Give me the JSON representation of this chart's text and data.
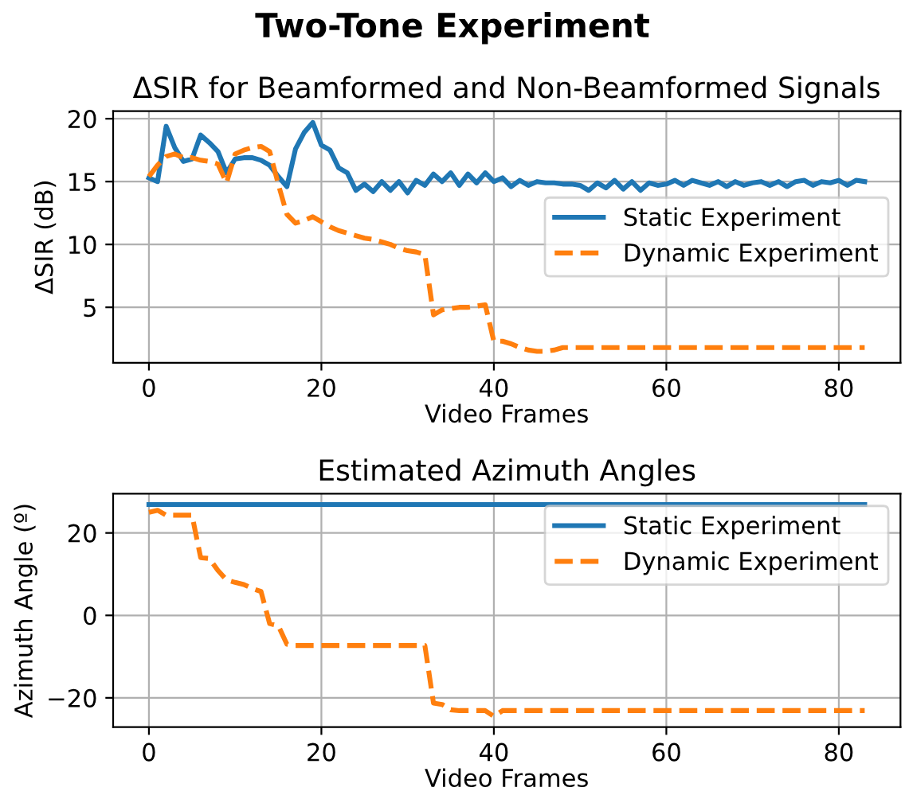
{
  "chart_data": [
    {
      "type": "line",
      "annotations": [
        "Two-Tone Experiment"
      ],
      "title": "ΔSIR for Beamformed and Non-Beamformed Signals",
      "xlabel": "Video Frames",
      "ylabel": "ΔSIR (dB)",
      "x": [
        0,
        1,
        2,
        3,
        4,
        5,
        6,
        7,
        8,
        9,
        10,
        11,
        12,
        13,
        14,
        15,
        16,
        17,
        18,
        19,
        20,
        21,
        22,
        23,
        24,
        25,
        26,
        27,
        28,
        29,
        30,
        31,
        32,
        33,
        34,
        35,
        36,
        37,
        38,
        39,
        40,
        41,
        42,
        43,
        44,
        45,
        46,
        47,
        48,
        49,
        50,
        51,
        52,
        53,
        54,
        55,
        56,
        57,
        58,
        59,
        60,
        61,
        62,
        63,
        64,
        65,
        66,
        67,
        68,
        69,
        70,
        71,
        72,
        73,
        74,
        75,
        76,
        77,
        78,
        79,
        80,
        81,
        82,
        83
      ],
      "series": [
        {
          "name": "Static Experiment",
          "color": "#1f77b4",
          "line_style": "solid",
          "values": [
            15.3,
            15.0,
            19.4,
            17.7,
            16.6,
            16.8,
            18.7,
            18.1,
            17.4,
            15.7,
            16.8,
            16.9,
            16.9,
            16.7,
            16.3,
            15.4,
            14.6,
            17.6,
            18.9,
            19.7,
            17.9,
            17.5,
            16.1,
            15.7,
            14.3,
            14.8,
            14.2,
            15.0,
            14.3,
            15.0,
            14.1,
            15.1,
            14.7,
            15.6,
            15.0,
            15.7,
            14.7,
            15.6,
            14.9,
            15.7,
            15.0,
            15.3,
            14.6,
            15.1,
            14.7,
            15.0,
            14.9,
            14.9,
            14.8,
            14.8,
            14.7,
            14.3,
            14.9,
            14.5,
            15.1,
            14.4,
            15.0,
            14.3,
            14.9,
            14.7,
            14.8,
            15.1,
            14.7,
            15.1,
            14.9,
            14.7,
            15.0,
            14.6,
            15.0,
            14.7,
            14.9,
            15.0,
            14.7,
            15.0,
            14.6,
            15.0,
            15.1,
            14.7,
            15.0,
            14.9,
            15.1,
            14.7,
            15.1,
            15.0
          ]
        },
        {
          "name": "Dynamic Experiment",
          "color": "#ff7f0e",
          "line_style": "dashed",
          "values": [
            15.4,
            16.3,
            17.0,
            17.2,
            16.9,
            16.9,
            16.7,
            16.6,
            16.4,
            14.9,
            17.2,
            17.5,
            17.7,
            17.8,
            17.4,
            14.8,
            12.4,
            11.7,
            11.9,
            12.2,
            11.8,
            11.4,
            11.1,
            10.9,
            10.7,
            10.5,
            10.4,
            10.2,
            10.0,
            9.7,
            9.5,
            9.4,
            9.2,
            4.4,
            4.8,
            4.9,
            5.0,
            5.0,
            5.1,
            5.2,
            2.3,
            2.3,
            2.1,
            1.8,
            1.6,
            1.5,
            1.5,
            1.6,
            1.8,
            1.8,
            1.8,
            1.8,
            1.8,
            1.8,
            1.8,
            1.8,
            1.8,
            1.8,
            1.8,
            1.8,
            1.8,
            1.8,
            1.8,
            1.8,
            1.8,
            1.8,
            1.8,
            1.8,
            1.8,
            1.8,
            1.8,
            1.8,
            1.8,
            1.8,
            1.8,
            1.8,
            1.8,
            1.8,
            1.8,
            1.8,
            1.8,
            1.8,
            1.8,
            1.8
          ]
        }
      ],
      "xlim": [
        -4.15,
        87.15
      ],
      "ylim": [
        0.59,
        20.61
      ],
      "xticks": [
        0,
        20,
        40,
        60,
        80
      ],
      "yticks": [
        5,
        10,
        15,
        20
      ],
      "grid": true,
      "legend": "right",
      "marker": "none"
    },
    {
      "type": "line",
      "title": "Estimated Azimuth Angles",
      "xlabel": "Video Frames",
      "ylabel": "Azimuth Angle (º)",
      "x": [
        0,
        1,
        2,
        3,
        4,
        5,
        6,
        7,
        8,
        9,
        10,
        11,
        12,
        13,
        14,
        15,
        16,
        17,
        18,
        19,
        20,
        21,
        22,
        23,
        24,
        25,
        26,
        27,
        28,
        29,
        30,
        31,
        32,
        33,
        34,
        35,
        36,
        37,
        38,
        39,
        40,
        41,
        42,
        43,
        44,
        45,
        46,
        47,
        48,
        49,
        50,
        51,
        52,
        53,
        54,
        55,
        56,
        57,
        58,
        59,
        60,
        61,
        62,
        63,
        64,
        65,
        66,
        67,
        68,
        69,
        70,
        71,
        72,
        73,
        74,
        75,
        76,
        77,
        78,
        79,
        80,
        81,
        82,
        83
      ],
      "series": [
        {
          "name": "Static Experiment",
          "color": "#1f77b4",
          "line_style": "solid",
          "values": [
            26.9,
            26.9,
            26.9,
            26.9,
            26.9,
            26.9,
            26.9,
            26.9,
            26.9,
            26.9,
            26.9,
            26.9,
            26.9,
            26.9,
            26.9,
            26.9,
            26.9,
            26.9,
            26.9,
            26.9,
            26.9,
            26.9,
            26.9,
            26.9,
            26.9,
            26.9,
            26.9,
            26.9,
            26.9,
            26.9,
            26.9,
            26.9,
            26.9,
            26.9,
            26.9,
            26.9,
            26.9,
            26.9,
            26.9,
            26.9,
            26.9,
            26.9,
            26.9,
            26.9,
            26.9,
            26.9,
            26.9,
            26.9,
            26.9,
            26.9,
            26.9,
            26.9,
            26.9,
            26.9,
            26.9,
            26.9,
            26.9,
            26.9,
            26.9,
            26.9,
            26.9,
            26.9,
            26.9,
            26.9,
            26.9,
            26.9,
            26.9,
            26.9,
            26.9,
            26.9,
            26.9,
            26.9,
            26.9,
            26.9,
            26.9,
            26.9,
            26.9,
            26.9,
            26.9,
            26.9,
            26.9,
            26.9,
            26.9,
            26.9
          ]
        },
        {
          "name": "Dynamic Experiment",
          "color": "#ff7f0e",
          "line_style": "dashed",
          "values": [
            25.0,
            25.5,
            24.3,
            24.3,
            24.3,
            24.3,
            14.0,
            13.8,
            10.9,
            8.6,
            8.0,
            7.5,
            6.5,
            5.8,
            -2.0,
            -2.5,
            -7.0,
            -7.3,
            -7.3,
            -7.3,
            -7.3,
            -7.3,
            -7.3,
            -7.3,
            -7.3,
            -7.3,
            -7.3,
            -7.3,
            -7.3,
            -7.3,
            -7.3,
            -7.3,
            -7.3,
            -21.3,
            -21.6,
            -22.9,
            -23.1,
            -23.1,
            -23.1,
            -23.1,
            -24.5,
            -23.1,
            -23.1,
            -23.1,
            -23.1,
            -23.1,
            -23.1,
            -23.1,
            -23.1,
            -23.1,
            -23.1,
            -23.1,
            -23.1,
            -23.1,
            -23.1,
            -23.1,
            -23.1,
            -23.1,
            -23.1,
            -23.1,
            -23.1,
            -23.1,
            -23.1,
            -23.1,
            -23.1,
            -23.1,
            -23.1,
            -23.1,
            -23.1,
            -23.1,
            -23.1,
            -23.1,
            -23.1,
            -23.1,
            -23.1,
            -23.1,
            -23.1,
            -23.1,
            -23.1,
            -23.1,
            -23.1,
            -23.1,
            -23.1,
            -23.1
          ]
        }
      ],
      "xlim": [
        -4.15,
        87.15
      ],
      "ylim": [
        -27.1,
        29.5
      ],
      "xticks": [
        0,
        20,
        40,
        60,
        80
      ],
      "yticks": [
        {
          "value": -20,
          "label": "−20"
        },
        0,
        20
      ],
      "grid": true,
      "legend": "upper right",
      "marker": "none"
    }
  ]
}
